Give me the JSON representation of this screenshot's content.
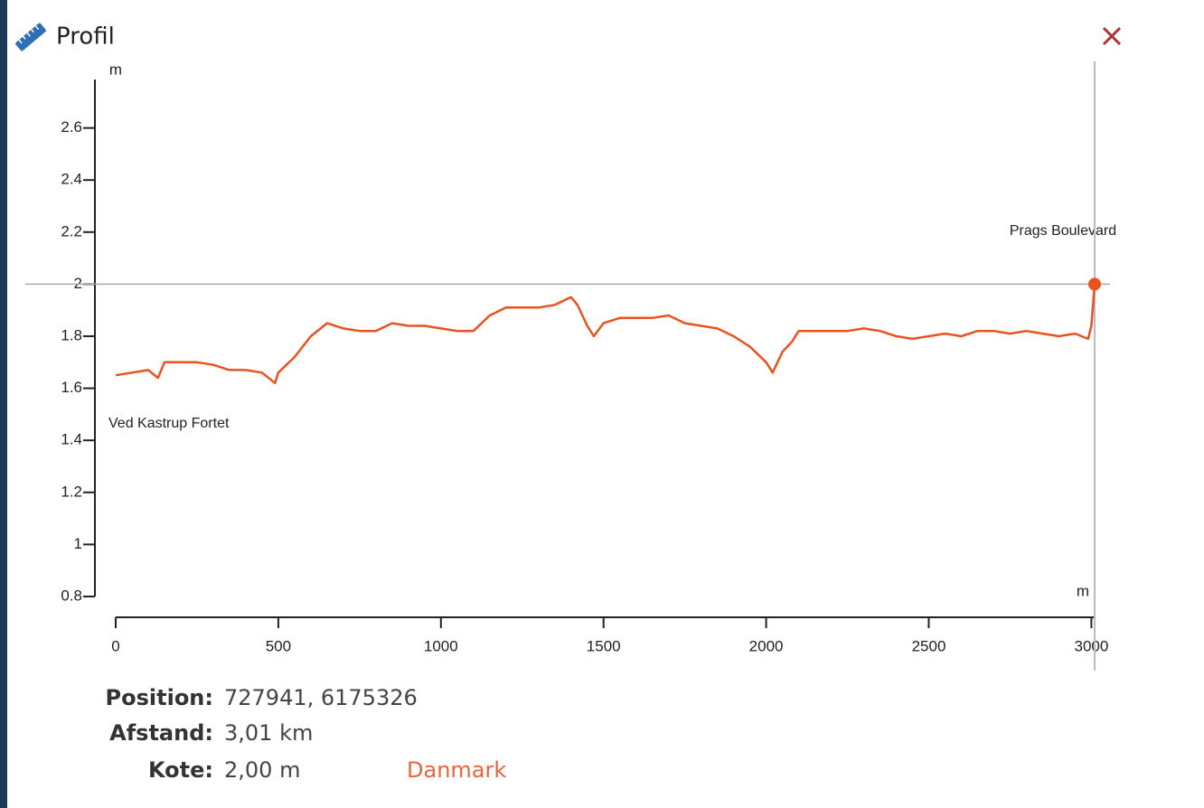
{
  "header": {
    "title": "Profil"
  },
  "chart_data": {
    "type": "line",
    "y_label": "m",
    "x_label": "m",
    "annotations": [
      "Ved Kastrup Fortet",
      "Prags Boulevard"
    ],
    "x": [
      0,
      50,
      100,
      130,
      150,
      200,
      250,
      300,
      350,
      400,
      450,
      490,
      500,
      550,
      600,
      650,
      700,
      750,
      800,
      850,
      900,
      950,
      1000,
      1050,
      1100,
      1150,
      1200,
      1250,
      1300,
      1350,
      1400,
      1420,
      1450,
      1470,
      1500,
      1550,
      1600,
      1650,
      1700,
      1750,
      1800,
      1850,
      1900,
      1950,
      2000,
      2020,
      2050,
      2080,
      2100,
      2150,
      2200,
      2250,
      2300,
      2350,
      2400,
      2450,
      2500,
      2550,
      2600,
      2650,
      2700,
      2750,
      2800,
      2850,
      2900,
      2950,
      2990,
      3000,
      3010
    ],
    "values": [
      1.65,
      1.66,
      1.67,
      1.64,
      1.7,
      1.7,
      1.7,
      1.69,
      1.67,
      1.67,
      1.66,
      1.62,
      1.66,
      1.72,
      1.8,
      1.85,
      1.83,
      1.82,
      1.82,
      1.85,
      1.84,
      1.84,
      1.83,
      1.82,
      1.82,
      1.88,
      1.91,
      1.91,
      1.91,
      1.92,
      1.95,
      1.92,
      1.84,
      1.8,
      1.85,
      1.87,
      1.87,
      1.87,
      1.88,
      1.85,
      1.84,
      1.83,
      1.8,
      1.76,
      1.7,
      1.66,
      1.74,
      1.78,
      1.82,
      1.82,
      1.82,
      1.82,
      1.83,
      1.82,
      1.8,
      1.79,
      1.8,
      1.81,
      1.8,
      1.82,
      1.82,
      1.81,
      1.82,
      1.81,
      1.8,
      1.81,
      1.79,
      1.84,
      2.0
    ],
    "color": "#e8531f",
    "cursor": {
      "x": 3010,
      "y": 2.0
    },
    "xlim": [
      0,
      3010
    ],
    "ylim": [
      0.8,
      2.8
    ],
    "xticks": [
      0,
      500,
      1000,
      1500,
      2000,
      2500,
      3000
    ],
    "yticks": [
      0.8,
      1,
      1.2,
      1.4,
      1.6,
      1.8,
      2,
      2.2,
      2.4,
      2.6
    ]
  },
  "info": {
    "position_label": "Position:",
    "position": "727941, 6175326",
    "distance_label": "Afstand:",
    "distance": "3,01 km",
    "elevation_label": "Kote:",
    "elevation": "2,00 m",
    "link": "Danmark"
  }
}
